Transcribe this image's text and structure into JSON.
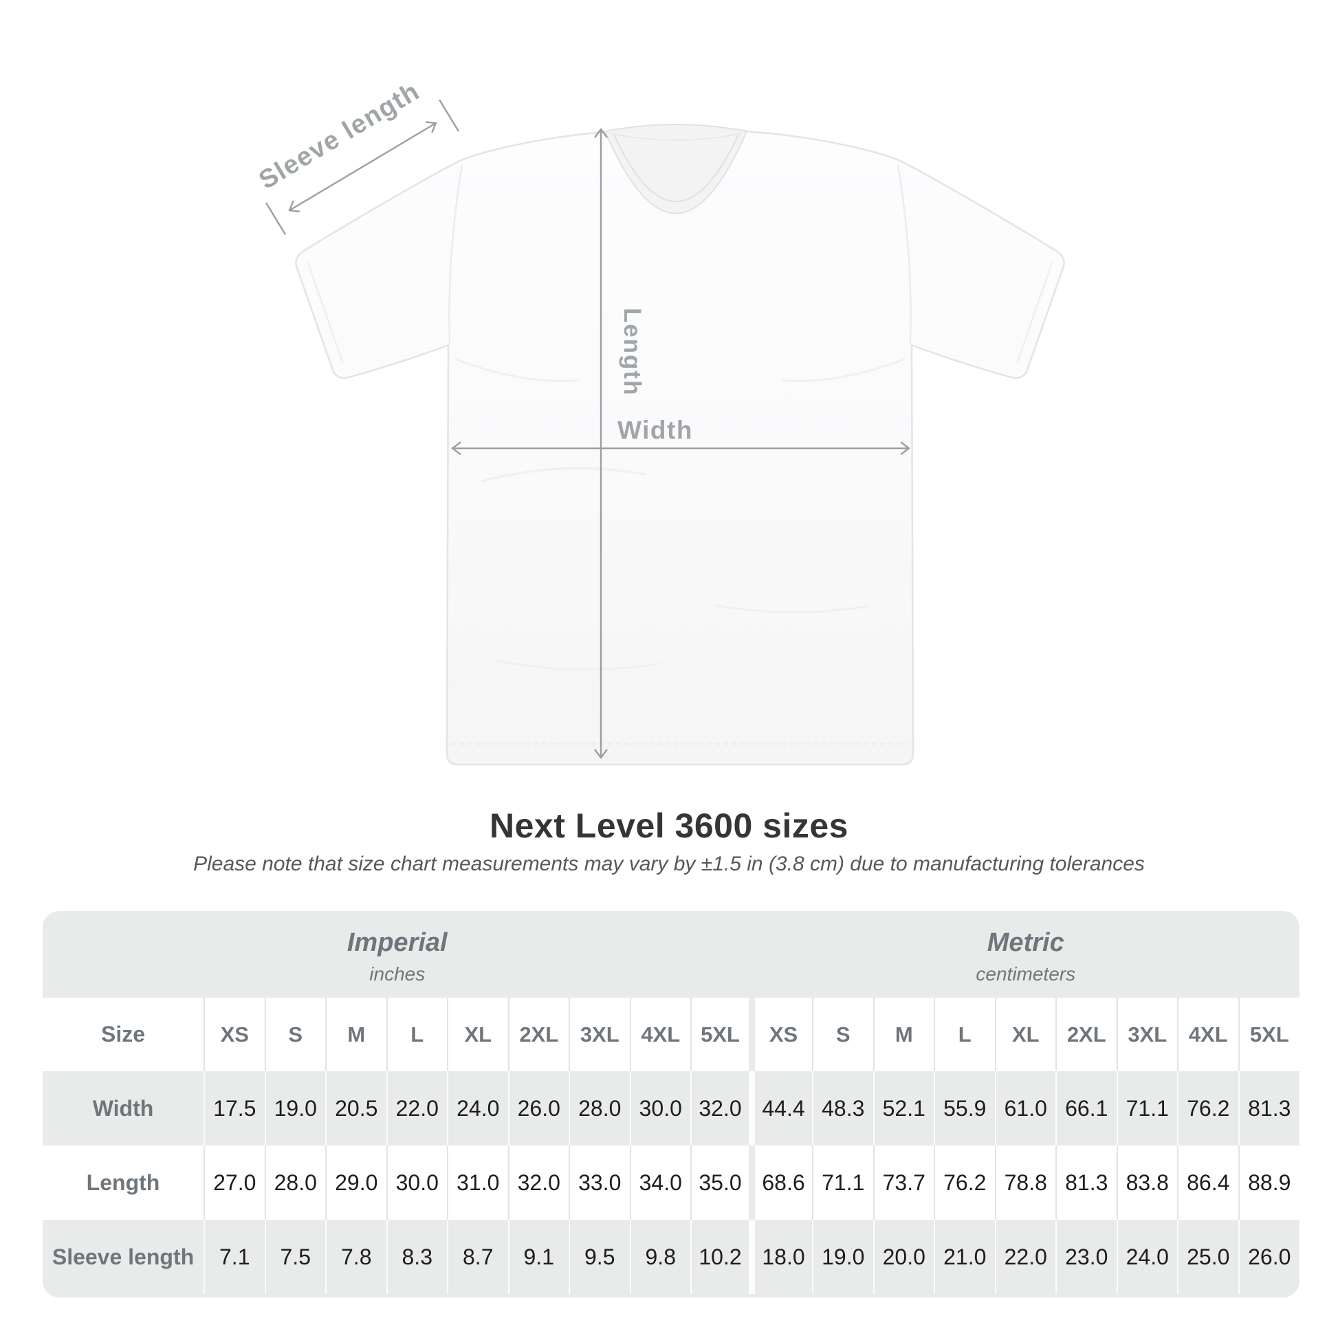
{
  "diagram": {
    "sleeve_length_label": "Sleeve length",
    "length_label": "Length",
    "width_label": "Width"
  },
  "title": "Next Level 3600 sizes",
  "subtitle": "Please note that size chart measurements may vary by ±1.5 in (3.8 cm) due to manufacturing tolerances",
  "table": {
    "size_header": "Size",
    "unit_groups": [
      {
        "name": "Imperial",
        "unit": "inches"
      },
      {
        "name": "Metric",
        "unit": "centimeters"
      }
    ],
    "sizes": [
      "XS",
      "S",
      "M",
      "L",
      "XL",
      "2XL",
      "3XL",
      "4XL",
      "5XL"
    ],
    "rows": [
      {
        "key": "width",
        "label": "Width",
        "imperial": [
          "17.5",
          "19.0",
          "20.5",
          "22.0",
          "24.0",
          "26.0",
          "28.0",
          "30.0",
          "32.0"
        ],
        "metric": [
          "44.4",
          "48.3",
          "52.1",
          "55.9",
          "61.0",
          "66.1",
          "71.1",
          "76.2",
          "81.3"
        ]
      },
      {
        "key": "length",
        "label": "Length",
        "imperial": [
          "27.0",
          "28.0",
          "29.0",
          "30.0",
          "31.0",
          "32.0",
          "33.0",
          "34.0",
          "35.0"
        ],
        "metric": [
          "68.6",
          "71.1",
          "73.7",
          "76.2",
          "78.8",
          "81.3",
          "83.8",
          "86.4",
          "88.9"
        ]
      },
      {
        "key": "sleeve-length",
        "label": "Sleeve length",
        "imperial": [
          "7.1",
          "7.5",
          "7.8",
          "8.3",
          "8.7",
          "9.1",
          "9.5",
          "9.8",
          "10.2"
        ],
        "metric": [
          "18.0",
          "19.0",
          "20.0",
          "21.0",
          "22.0",
          "23.0",
          "24.0",
          "25.0",
          "26.0"
        ]
      }
    ]
  },
  "colors": {
    "arrow": "#9a9fa2",
    "diagram_label": "#a0a5a8",
    "title": "#333536",
    "subtitle": "#56585a",
    "table_bg": "#e9eaea",
    "heading_text": "#6f767b",
    "value_text": "#1d1d1f",
    "row_white": "#ffffff",
    "sep_on_white": "#e2e3e4",
    "sep_on_gray": "#fcfcfc",
    "shirt_fill": "#fcfcfd",
    "shirt_outline": "#e3e4e5"
  }
}
